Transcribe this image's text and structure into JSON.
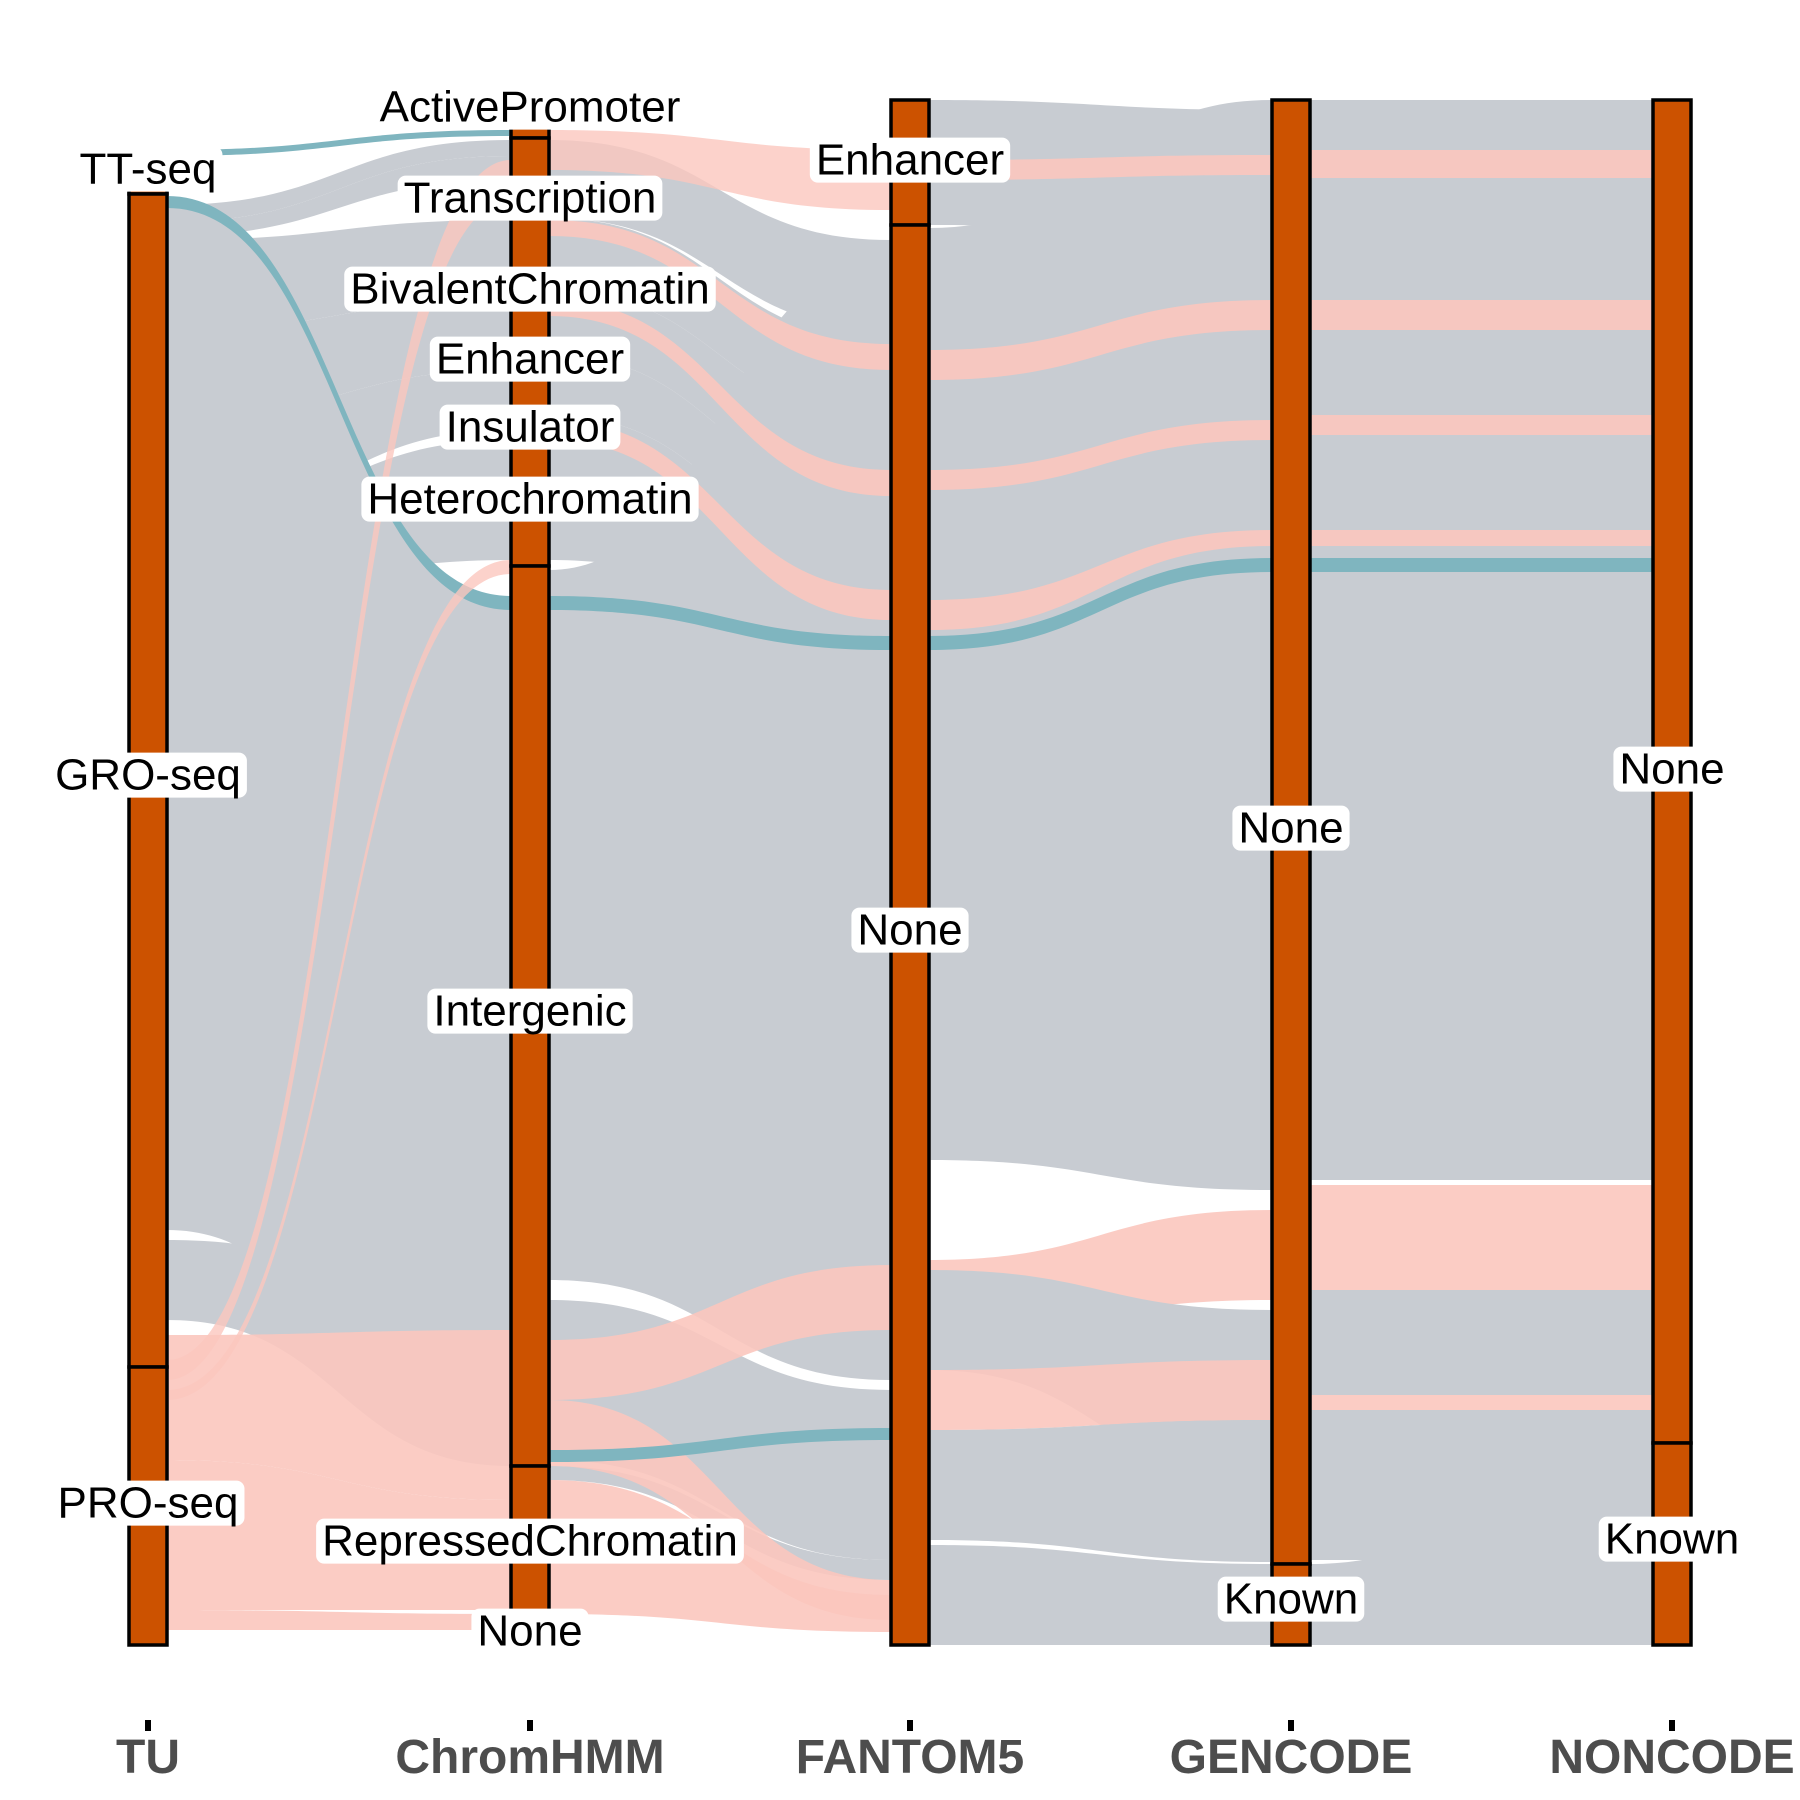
{
  "chart_data": {
    "type": "alluvial",
    "axes": [
      "TU",
      "ChromHMM",
      "FANTOM5",
      "GENCODE",
      "NONCODE"
    ],
    "strata": [
      {
        "axis": "TU",
        "categories": [
          {
            "name": "TT-seq",
            "value": 0.0
          },
          {
            "name": "GRO-seq",
            "value": 0.76
          },
          {
            "name": "PRO-seq",
            "value": 0.18
          }
        ]
      },
      {
        "axis": "ChromHMM",
        "categories": [
          {
            "name": "ActivePromoter",
            "value": 0.01
          },
          {
            "name": "Transcription",
            "value": 0.07
          },
          {
            "name": "BivalentChromatin",
            "value": 0.06
          },
          {
            "name": "Enhancer",
            "value": 0.05
          },
          {
            "name": "Insulator",
            "value": 0.05
          },
          {
            "name": "Heterochromatin",
            "value": 0.04
          },
          {
            "name": "Intergenic",
            "value": 0.58
          },
          {
            "name": "RepressedChromatin",
            "value": 0.1
          },
          {
            "name": "None",
            "value": 0.03
          }
        ]
      },
      {
        "axis": "FANTOM5",
        "categories": [
          {
            "name": "Enhancer",
            "value": 0.08
          },
          {
            "name": "None",
            "value": 0.92
          }
        ]
      },
      {
        "axis": "GENCODE",
        "categories": [
          {
            "name": "None",
            "value": 0.95
          },
          {
            "name": "Known",
            "value": 0.05
          }
        ]
      },
      {
        "axis": "NONCODE",
        "categories": [
          {
            "name": "None",
            "value": 0.87
          },
          {
            "name": "Known",
            "value": 0.13
          }
        ]
      }
    ],
    "flow_fill_groups": [
      {
        "color": "#c8ccd2"
      },
      {
        "color": "#fbc7be"
      },
      {
        "color": "#7fb5bf"
      }
    ],
    "stratum_color": "#cc5200"
  }
}
